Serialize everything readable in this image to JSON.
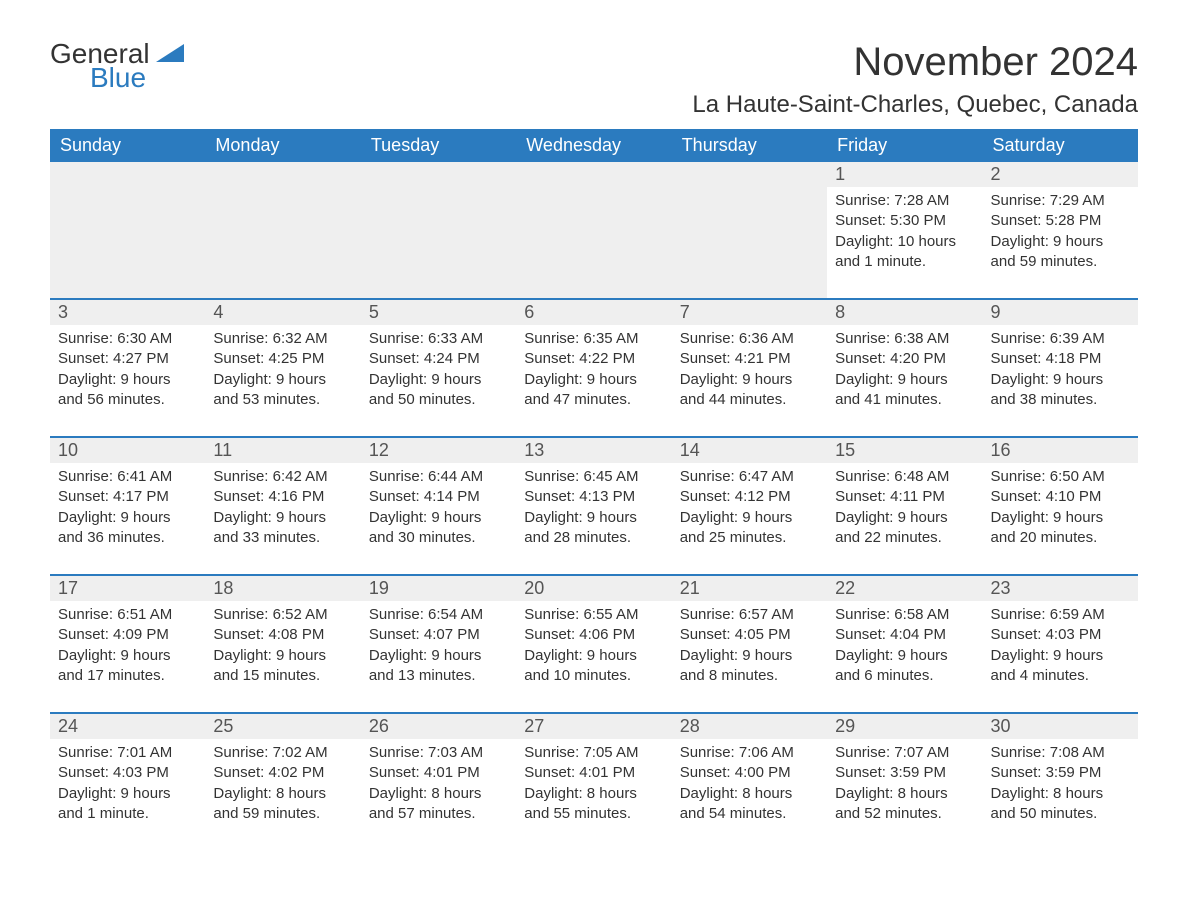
{
  "logo": {
    "general": "General",
    "blue": "Blue",
    "flag_color": "#2b7bbf"
  },
  "title": "November 2024",
  "location": "La Haute-Saint-Charles, Quebec, Canada",
  "colors": {
    "header_bg": "#2b7bbf",
    "header_text": "#ffffff",
    "daynum_bg": "#efefef",
    "daynum_text": "#555555",
    "body_text": "#333333",
    "row_border": "#2b7bbf",
    "page_bg": "#ffffff"
  },
  "typography": {
    "title_fontsize": 40,
    "location_fontsize": 24,
    "header_fontsize": 18,
    "daynum_fontsize": 18,
    "body_fontsize": 15
  },
  "weekday_headers": [
    "Sunday",
    "Monday",
    "Tuesday",
    "Wednesday",
    "Thursday",
    "Friday",
    "Saturday"
  ],
  "leading_blanks": 5,
  "days": [
    {
      "n": "1",
      "sunrise": "Sunrise: 7:28 AM",
      "sunset": "Sunset: 5:30 PM",
      "daylight": "Daylight: 10 hours and 1 minute."
    },
    {
      "n": "2",
      "sunrise": "Sunrise: 7:29 AM",
      "sunset": "Sunset: 5:28 PM",
      "daylight": "Daylight: 9 hours and 59 minutes."
    },
    {
      "n": "3",
      "sunrise": "Sunrise: 6:30 AM",
      "sunset": "Sunset: 4:27 PM",
      "daylight": "Daylight: 9 hours and 56 minutes."
    },
    {
      "n": "4",
      "sunrise": "Sunrise: 6:32 AM",
      "sunset": "Sunset: 4:25 PM",
      "daylight": "Daylight: 9 hours and 53 minutes."
    },
    {
      "n": "5",
      "sunrise": "Sunrise: 6:33 AM",
      "sunset": "Sunset: 4:24 PM",
      "daylight": "Daylight: 9 hours and 50 minutes."
    },
    {
      "n": "6",
      "sunrise": "Sunrise: 6:35 AM",
      "sunset": "Sunset: 4:22 PM",
      "daylight": "Daylight: 9 hours and 47 minutes."
    },
    {
      "n": "7",
      "sunrise": "Sunrise: 6:36 AM",
      "sunset": "Sunset: 4:21 PM",
      "daylight": "Daylight: 9 hours and 44 minutes."
    },
    {
      "n": "8",
      "sunrise": "Sunrise: 6:38 AM",
      "sunset": "Sunset: 4:20 PM",
      "daylight": "Daylight: 9 hours and 41 minutes."
    },
    {
      "n": "9",
      "sunrise": "Sunrise: 6:39 AM",
      "sunset": "Sunset: 4:18 PM",
      "daylight": "Daylight: 9 hours and 38 minutes."
    },
    {
      "n": "10",
      "sunrise": "Sunrise: 6:41 AM",
      "sunset": "Sunset: 4:17 PM",
      "daylight": "Daylight: 9 hours and 36 minutes."
    },
    {
      "n": "11",
      "sunrise": "Sunrise: 6:42 AM",
      "sunset": "Sunset: 4:16 PM",
      "daylight": "Daylight: 9 hours and 33 minutes."
    },
    {
      "n": "12",
      "sunrise": "Sunrise: 6:44 AM",
      "sunset": "Sunset: 4:14 PM",
      "daylight": "Daylight: 9 hours and 30 minutes."
    },
    {
      "n": "13",
      "sunrise": "Sunrise: 6:45 AM",
      "sunset": "Sunset: 4:13 PM",
      "daylight": "Daylight: 9 hours and 28 minutes."
    },
    {
      "n": "14",
      "sunrise": "Sunrise: 6:47 AM",
      "sunset": "Sunset: 4:12 PM",
      "daylight": "Daylight: 9 hours and 25 minutes."
    },
    {
      "n": "15",
      "sunrise": "Sunrise: 6:48 AM",
      "sunset": "Sunset: 4:11 PM",
      "daylight": "Daylight: 9 hours and 22 minutes."
    },
    {
      "n": "16",
      "sunrise": "Sunrise: 6:50 AM",
      "sunset": "Sunset: 4:10 PM",
      "daylight": "Daylight: 9 hours and 20 minutes."
    },
    {
      "n": "17",
      "sunrise": "Sunrise: 6:51 AM",
      "sunset": "Sunset: 4:09 PM",
      "daylight": "Daylight: 9 hours and 17 minutes."
    },
    {
      "n": "18",
      "sunrise": "Sunrise: 6:52 AM",
      "sunset": "Sunset: 4:08 PM",
      "daylight": "Daylight: 9 hours and 15 minutes."
    },
    {
      "n": "19",
      "sunrise": "Sunrise: 6:54 AM",
      "sunset": "Sunset: 4:07 PM",
      "daylight": "Daylight: 9 hours and 13 minutes."
    },
    {
      "n": "20",
      "sunrise": "Sunrise: 6:55 AM",
      "sunset": "Sunset: 4:06 PM",
      "daylight": "Daylight: 9 hours and 10 minutes."
    },
    {
      "n": "21",
      "sunrise": "Sunrise: 6:57 AM",
      "sunset": "Sunset: 4:05 PM",
      "daylight": "Daylight: 9 hours and 8 minutes."
    },
    {
      "n": "22",
      "sunrise": "Sunrise: 6:58 AM",
      "sunset": "Sunset: 4:04 PM",
      "daylight": "Daylight: 9 hours and 6 minutes."
    },
    {
      "n": "23",
      "sunrise": "Sunrise: 6:59 AM",
      "sunset": "Sunset: 4:03 PM",
      "daylight": "Daylight: 9 hours and 4 minutes."
    },
    {
      "n": "24",
      "sunrise": "Sunrise: 7:01 AM",
      "sunset": "Sunset: 4:03 PM",
      "daylight": "Daylight: 9 hours and 1 minute."
    },
    {
      "n": "25",
      "sunrise": "Sunrise: 7:02 AM",
      "sunset": "Sunset: 4:02 PM",
      "daylight": "Daylight: 8 hours and 59 minutes."
    },
    {
      "n": "26",
      "sunrise": "Sunrise: 7:03 AM",
      "sunset": "Sunset: 4:01 PM",
      "daylight": "Daylight: 8 hours and 57 minutes."
    },
    {
      "n": "27",
      "sunrise": "Sunrise: 7:05 AM",
      "sunset": "Sunset: 4:01 PM",
      "daylight": "Daylight: 8 hours and 55 minutes."
    },
    {
      "n": "28",
      "sunrise": "Sunrise: 7:06 AM",
      "sunset": "Sunset: 4:00 PM",
      "daylight": "Daylight: 8 hours and 54 minutes."
    },
    {
      "n": "29",
      "sunrise": "Sunrise: 7:07 AM",
      "sunset": "Sunset: 3:59 PM",
      "daylight": "Daylight: 8 hours and 52 minutes."
    },
    {
      "n": "30",
      "sunrise": "Sunrise: 7:08 AM",
      "sunset": "Sunset: 3:59 PM",
      "daylight": "Daylight: 8 hours and 50 minutes."
    }
  ]
}
